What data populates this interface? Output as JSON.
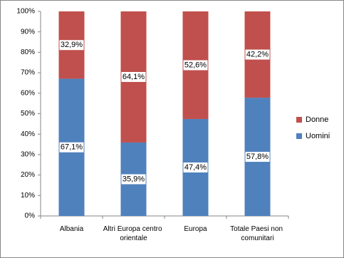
{
  "chart_data": {
    "type": "stacked-bar-100",
    "categories": [
      "Albania",
      "Altri Europa centro orientale",
      "Europa",
      "Totale Paesi non comunitari"
    ],
    "series": [
      {
        "name": "Uomini",
        "color": "#4f81bd",
        "values": [
          67.1,
          35.9,
          47.4,
          57.8
        ],
        "value_labels": [
          "67,1%",
          "35,9%",
          "47,4%",
          "57,8%"
        ]
      },
      {
        "name": "Donne",
        "color": "#c0504d",
        "values": [
          32.9,
          64.1,
          52.6,
          42.2
        ],
        "value_labels": [
          "32,9%",
          "64,1%",
          "52,6%",
          "42,2%"
        ]
      }
    ],
    "ylim": [
      0,
      100
    ],
    "yticks": [
      {
        "value": 0,
        "label": "0%"
      },
      {
        "value": 10,
        "label": "10%"
      },
      {
        "value": 20,
        "label": "20%"
      },
      {
        "value": 30,
        "label": "30%"
      },
      {
        "value": 40,
        "label": "40%"
      },
      {
        "value": 50,
        "label": "50%"
      },
      {
        "value": 60,
        "label": "60%"
      },
      {
        "value": 70,
        "label": "70%"
      },
      {
        "value": 80,
        "label": "80%"
      },
      {
        "value": 90,
        "label": "90%"
      },
      {
        "value": 100,
        "label": "100%"
      }
    ],
    "grid": false,
    "legend": "right"
  }
}
